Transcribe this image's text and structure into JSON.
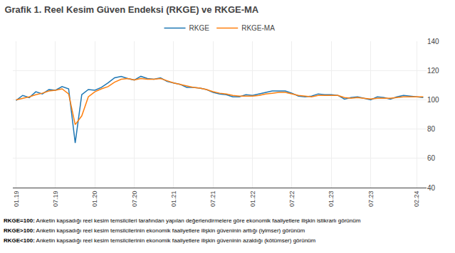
{
  "chart_data": {
    "type": "line",
    "title": "Grafik 1. Reel Kesim Güven Endeksi (RKGE) ve RKGE-MA",
    "categories": [
      "01.19",
      null,
      null,
      null,
      null,
      null,
      "07.19",
      null,
      null,
      null,
      null,
      null,
      "01.20",
      null,
      null,
      null,
      null,
      null,
      "07.20",
      null,
      null,
      null,
      null,
      null,
      "01.21",
      null,
      null,
      null,
      null,
      null,
      "07.21",
      null,
      null,
      null,
      null,
      null,
      "01.22",
      null,
      null,
      null,
      null,
      null,
      "07.22",
      null,
      null,
      null,
      null,
      null,
      "01.23",
      null,
      null,
      null,
      null,
      null,
      "07.23",
      null,
      null,
      null,
      null,
      null,
      null,
      "02.24",
      null
    ],
    "series": [
      {
        "name": "RKGE",
        "values": [
          99.5,
          103.0,
          101.5,
          105.5,
          104.0,
          107.0,
          106.5,
          109.0,
          107.5,
          70.5,
          103.5,
          107.0,
          106.5,
          108.5,
          111.5,
          115.0,
          116.0,
          114.5,
          113.5,
          116.0,
          114.5,
          114.0,
          115.0,
          112.5,
          111.5,
          110.5,
          108.5,
          108.5,
          108.0,
          107.0,
          105.0,
          104.0,
          103.5,
          102.0,
          102.0,
          103.5,
          103.0,
          104.0,
          105.0,
          106.0,
          106.0,
          106.0,
          104.5,
          102.5,
          102.0,
          102.5,
          104.0,
          103.5,
          103.5,
          103.0,
          100.5,
          101.5,
          102.0,
          101.0,
          100.0,
          102.0,
          101.5,
          100.5,
          102.0,
          103.0,
          102.5,
          102.0,
          101.5
        ]
      },
      {
        "name": "RKGE-MA",
        "values": [
          100.0,
          101.0,
          102.0,
          103.5,
          104.5,
          106.0,
          106.5,
          107.5,
          104.0,
          83.0,
          89.0,
          102.0,
          105.5,
          107.5,
          109.0,
          112.0,
          114.0,
          114.5,
          113.5,
          114.5,
          114.0,
          114.0,
          114.5,
          113.0,
          111.5,
          110.5,
          109.5,
          108.5,
          108.0,
          107.0,
          105.5,
          104.5,
          104.0,
          103.0,
          102.5,
          102.5,
          102.5,
          103.0,
          104.0,
          104.5,
          105.0,
          105.0,
          104.0,
          103.0,
          102.5,
          102.0,
          103.0,
          103.0,
          103.0,
          103.0,
          101.5,
          101.0,
          101.5,
          101.0,
          100.5,
          101.0,
          101.0,
          101.0,
          101.5,
          102.0,
          102.0,
          102.0,
          102.0
        ]
      }
    ],
    "ylim": [
      40,
      140
    ],
    "yticks": [
      40,
      60,
      80,
      100,
      120,
      140
    ],
    "grid": true,
    "annotations": [
      "RKGE=100: Anketin kapsadığı reel kesim temsilcileri tarafından yapılan değerlendirmelere göre ekonomik faaliyetlere ilişkin istikrarlı görünüm",
      "RKGE>100: Anketin kapsadığı reel kesim temsilcilerinin ekonomik faaliyetlere ilişkin güveninin arttığı (iyimser) görünüm",
      "RKGE<100: Anketin kapsadığı reel kesim temsilcilerinin ekonomik faaliyetlere ilişkin güveninin azaldığı (kötümser) görünüm"
    ]
  }
}
